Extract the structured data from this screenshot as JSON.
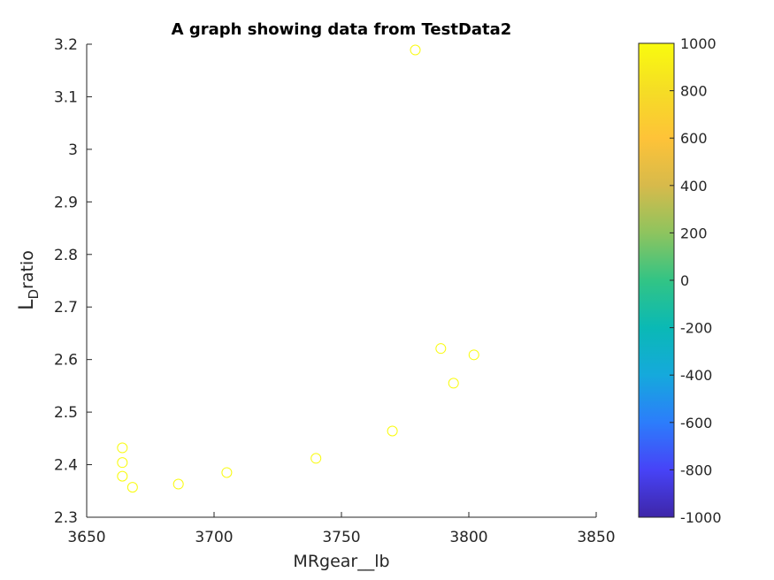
{
  "chart_data": {
    "type": "scatter",
    "title": "A graph showing data from TestData2",
    "xlabel": "MRgear__lb",
    "ylabel_main": "L",
    "ylabel_sub": "D",
    "ylabel_rest": "ratio",
    "xlim": [
      3650,
      3850
    ],
    "ylim": [
      2.3,
      3.2
    ],
    "x_ticks": [
      "3650",
      "3700",
      "3750",
      "3800",
      "3850"
    ],
    "y_ticks": [
      "2.3",
      "2.4",
      "2.5",
      "2.6",
      "2.7",
      "2.8",
      "2.9",
      "3",
      "3.1",
      "3.2"
    ],
    "marker_color": "#f9fb0e",
    "points": [
      {
        "x": 3664,
        "y": 2.432
      },
      {
        "x": 3664,
        "y": 2.404
      },
      {
        "x": 3664,
        "y": 2.378
      },
      {
        "x": 3668,
        "y": 2.357
      },
      {
        "x": 3686,
        "y": 2.363
      },
      {
        "x": 3705,
        "y": 2.385
      },
      {
        "x": 3740,
        "y": 2.412
      },
      {
        "x": 3770,
        "y": 2.464
      },
      {
        "x": 3779,
        "y": 3.189
      },
      {
        "x": 3789,
        "y": 2.621
      },
      {
        "x": 3794,
        "y": 2.555
      },
      {
        "x": 3802,
        "y": 2.609
      }
    ],
    "colorbar": {
      "limits": [
        -1000,
        1000
      ],
      "ticks": [
        "1000",
        "800",
        "600",
        "400",
        "200",
        "0",
        "-200",
        "-400",
        "-600",
        "-800",
        "-1000"
      ],
      "colormap": [
        "#3e26a8",
        "#4743f7",
        "#2c7dfb",
        "#15a9dc",
        "#0ab9b5",
        "#32c485",
        "#8ec45e",
        "#d7ba4b",
        "#fec338",
        "#f5dd25",
        "#f9fb0e"
      ]
    }
  }
}
